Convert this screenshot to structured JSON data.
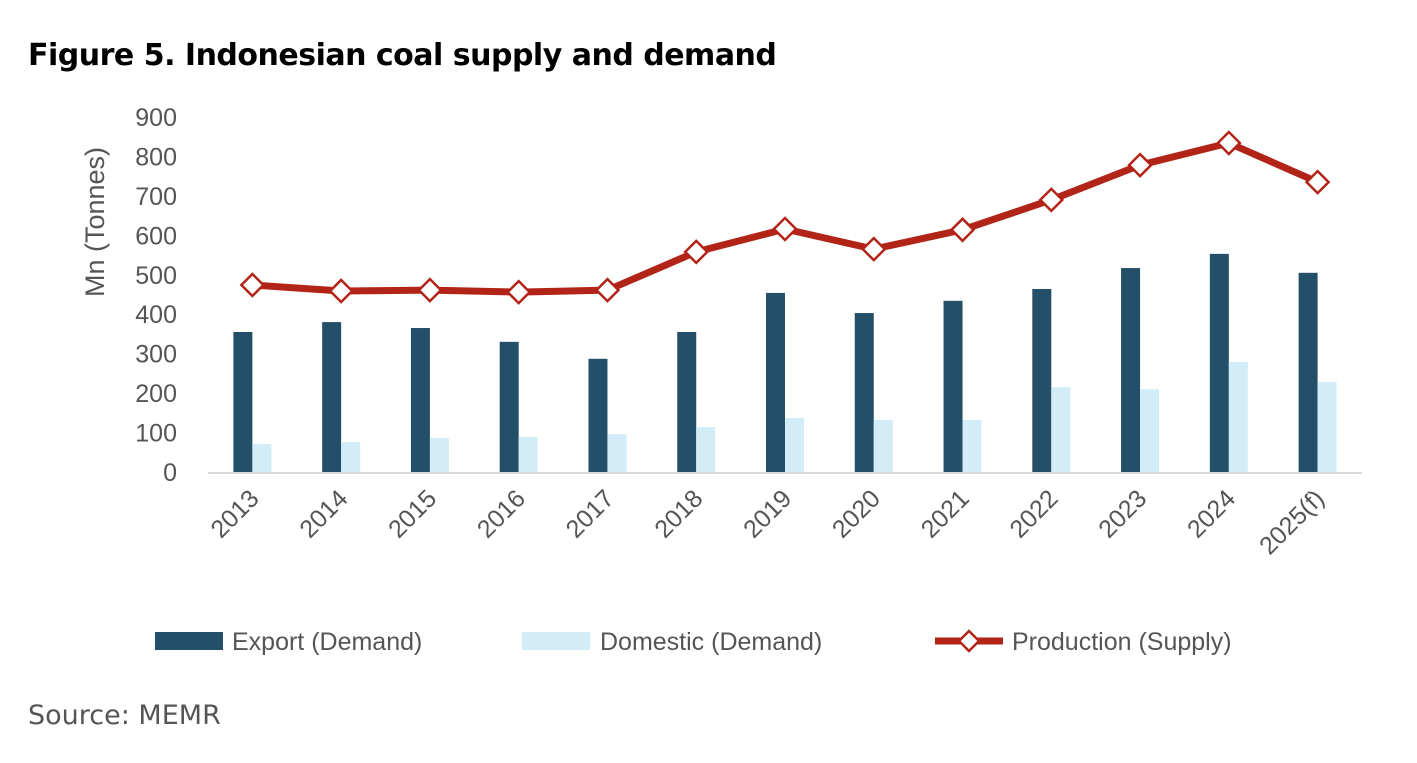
{
  "title": "Figure 5. Indonesian coal supply and demand",
  "source": "Source: MEMR",
  "chart_data": {
    "type": "bar",
    "title": "Figure 5. Indonesian coal supply and demand",
    "ylabel": "Mn (Tonnes)",
    "xlabel": "",
    "ylim": [
      0,
      900
    ],
    "yticks": [
      "0",
      "100",
      "200",
      "300",
      "400",
      "500",
      "600",
      "700",
      "800",
      "900"
    ],
    "grid": false,
    "legend": "bottom",
    "categories": [
      "2013",
      "2014",
      "2015",
      "2016",
      "2017",
      "2018",
      "2019",
      "2020",
      "2021",
      "2022",
      "2023",
      "2024",
      "2025(f)"
    ],
    "series": [
      {
        "name": "Export (Demand)",
        "type": "bar",
        "color": "#234F68",
        "values": [
          355,
          380,
          365,
          330,
          287,
          355,
          454,
          403,
          434,
          464,
          517,
          553,
          505
        ]
      },
      {
        "name": "Domestic (Demand)",
        "type": "bar",
        "color": "#D3EDF8",
        "values": [
          71,
          76,
          86,
          89,
          96,
          114,
          137,
          132,
          132,
          215,
          210,
          279,
          228
        ]
      },
      {
        "name": "Production (Supply)",
        "type": "line",
        "marker": "diamond",
        "color": "#B22418",
        "values": [
          474,
          459,
          461,
          456,
          461,
          558,
          616,
          565,
          614,
          690,
          778,
          834,
          735
        ]
      }
    ]
  }
}
